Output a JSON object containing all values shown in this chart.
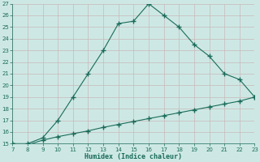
{
  "upper_x": [
    7,
    8,
    9,
    10,
    11,
    12,
    13,
    14,
    15,
    16,
    17,
    18,
    19,
    20,
    21,
    22,
    23
  ],
  "upper_y": [
    15,
    15,
    15.5,
    17,
    19,
    21,
    23,
    25.3,
    25.5,
    27,
    26,
    25,
    23.5,
    22.5,
    21,
    20.5,
    19
  ],
  "lower_x": [
    7,
    8,
    9,
    10,
    11,
    12,
    13,
    14,
    15,
    16,
    17,
    18,
    19,
    20,
    21,
    22,
    23
  ],
  "lower_y": [
    15.0,
    14.9,
    15.3,
    15.6,
    15.85,
    16.1,
    16.4,
    16.65,
    16.9,
    17.15,
    17.4,
    17.65,
    17.9,
    18.15,
    18.4,
    18.65,
    19.0
  ],
  "line_color": "#1a6b5a",
  "bg_color": "#cde8e4",
  "grid_major_color": "#b8d0cc",
  "grid_minor_color": "#d8ecec",
  "xlabel": "Humidex (Indice chaleur)",
  "xlim": [
    7,
    23
  ],
  "ylim": [
    15,
    27
  ],
  "xticks": [
    7,
    8,
    9,
    10,
    11,
    12,
    13,
    14,
    15,
    16,
    17,
    18,
    19,
    20,
    21,
    22,
    23
  ],
  "yticks": [
    15,
    16,
    17,
    18,
    19,
    20,
    21,
    22,
    23,
    24,
    25,
    26,
    27
  ]
}
